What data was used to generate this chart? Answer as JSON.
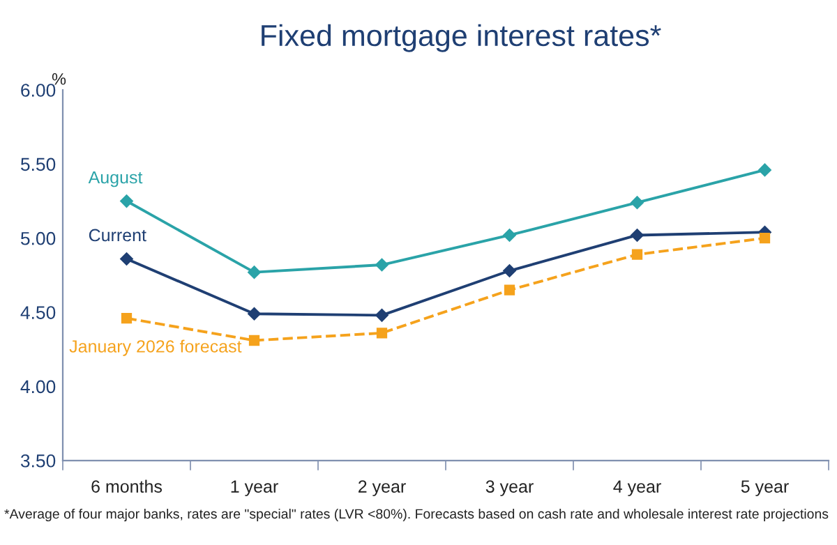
{
  "chart_data": {
    "type": "line",
    "title": "Fixed mortgage interest rates*",
    "ylabel": "%",
    "categories": [
      "6 months",
      "1 year",
      "2 year",
      "3 year",
      "4 year",
      "5 year"
    ],
    "series": [
      {
        "name": "August",
        "color": "#2aa3a8",
        "marker": "diamond",
        "line_style": "solid",
        "values": [
          5.25,
          4.77,
          4.82,
          5.02,
          5.24,
          5.46
        ]
      },
      {
        "name": "Current",
        "color": "#1f3f73",
        "marker": "diamond",
        "line_style": "solid",
        "values": [
          4.86,
          4.49,
          4.48,
          4.78,
          5.02,
          5.04
        ]
      },
      {
        "name": "January 2026 forecast",
        "color": "#f5a21c",
        "marker": "square",
        "line_style": "dashed",
        "values": [
          4.46,
          4.31,
          4.36,
          4.65,
          4.89,
          5.0
        ]
      }
    ],
    "ylim": [
      3.5,
      6.0
    ],
    "yticks": [
      {
        "value": 3.5,
        "label": "3.50"
      },
      {
        "value": 4.0,
        "label": "4.00"
      },
      {
        "value": 4.5,
        "label": "4.50"
      },
      {
        "value": 5.0,
        "label": "5.00"
      },
      {
        "value": 5.5,
        "label": "5.50"
      },
      {
        "value": 6.0,
        "label": "6.00"
      }
    ],
    "grid": false,
    "legend": false,
    "annotations": [
      "*Average of four major banks, rates are \"special\" rates (LVR <80%). Forecasts based on cash rate and wholesale interest rate projections"
    ]
  }
}
